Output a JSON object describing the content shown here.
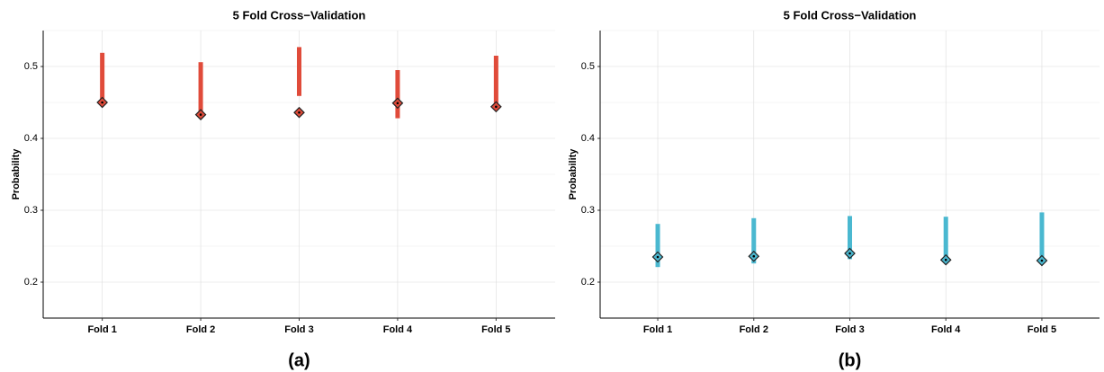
{
  "chart_data": [
    {
      "type": "interval",
      "title": "5 Fold Cross−Validation",
      "ylabel": "Probability",
      "panel_label": "(a)",
      "categories": [
        "Fold 1",
        "Fold 2",
        "Fold 3",
        "Fold 4",
        "Fold 5"
      ],
      "values": [
        0.45,
        0.433,
        0.436,
        0.449,
        0.444
      ],
      "lower": [
        0.45,
        0.434,
        0.459,
        0.428,
        0.444
      ],
      "upper": [
        0.519,
        0.506,
        0.527,
        0.495,
        0.515
      ],
      "color": "#e04b3a",
      "ylim": [
        0.15,
        0.55
      ],
      "yticks": [
        0.2,
        0.3,
        0.4,
        0.5
      ],
      "minor_yticks": [
        0.25,
        0.35,
        0.45,
        0.55
      ],
      "grid": true
    },
    {
      "type": "interval",
      "title": "5 Fold Cross−Validation",
      "ylabel": "Probability",
      "panel_label": "(b)",
      "categories": [
        "Fold 1",
        "Fold 2",
        "Fold 3",
        "Fold 4",
        "Fold 5"
      ],
      "values": [
        0.235,
        0.236,
        0.24,
        0.231,
        0.23
      ],
      "lower": [
        0.221,
        0.226,
        0.232,
        0.231,
        0.23
      ],
      "upper": [
        0.281,
        0.289,
        0.292,
        0.291,
        0.297
      ],
      "color": "#4ab8d0",
      "ylim": [
        0.15,
        0.55
      ],
      "yticks": [
        0.2,
        0.3,
        0.4,
        0.5
      ],
      "minor_yticks": [
        0.25,
        0.35,
        0.45,
        0.55
      ],
      "grid": true
    }
  ]
}
